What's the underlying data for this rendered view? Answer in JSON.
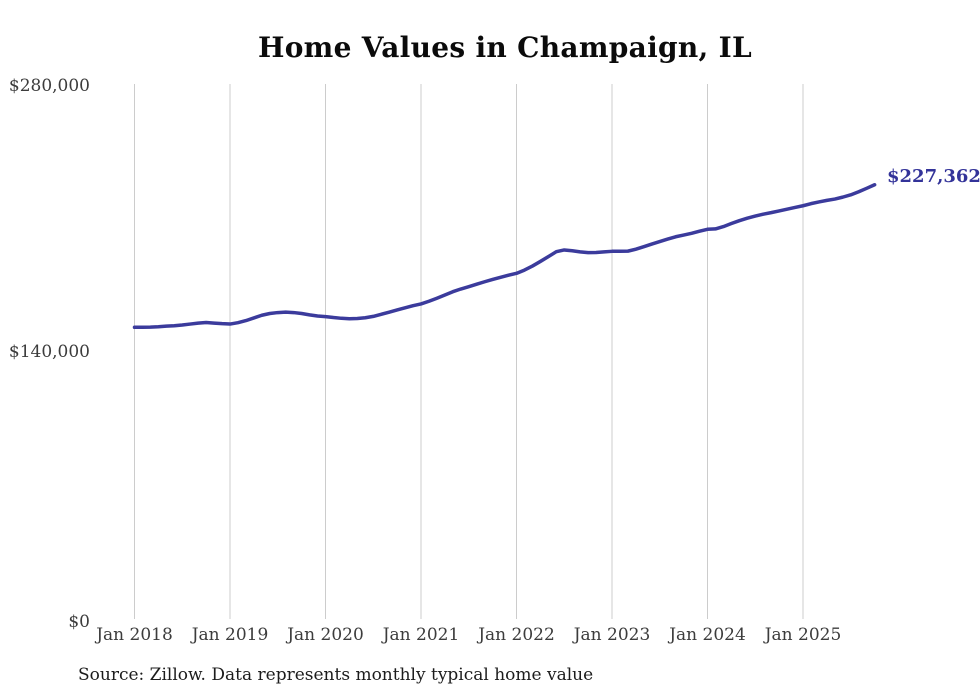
{
  "title": "Home Values in Champaign, IL",
  "source_note": "Source: Zillow. Data represents monthly typical home value",
  "colors": {
    "line": "#3b3b9c",
    "end_label": "#333399",
    "gridline": "#cccccc",
    "tick_text": "#3c3c3c",
    "title_text": "#0b0b0b",
    "background": "#ffffff"
  },
  "chart_data": {
    "type": "line",
    "title": "Home Values in Champaign, IL",
    "series_name": "Monthly typical home value",
    "end_label": "$227,362",
    "end_value": 227362,
    "ylim": [
      0,
      280000
    ],
    "grid": "vertical-only",
    "legend": "none",
    "y_ticks": [
      {
        "label": "$280,000",
        "value": 280000
      },
      {
        "label": "$140,000",
        "value": 140000
      },
      {
        "label": "$0",
        "value": 0
      }
    ],
    "x_ticks": [
      "Jan 2018",
      "Jan 2019",
      "Jan 2020",
      "Jan 2021",
      "Jan 2022",
      "Jan 2023",
      "Jan 2024",
      "Jan 2025"
    ],
    "months": [
      "2018-01",
      "2018-02",
      "2018-03",
      "2018-04",
      "2018-05",
      "2018-06",
      "2018-07",
      "2018-08",
      "2018-09",
      "2018-10",
      "2018-11",
      "2018-12",
      "2019-01",
      "2019-02",
      "2019-03",
      "2019-04",
      "2019-05",
      "2019-06",
      "2019-07",
      "2019-08",
      "2019-09",
      "2019-10",
      "2019-11",
      "2019-12",
      "2020-01",
      "2020-02",
      "2020-03",
      "2020-04",
      "2020-05",
      "2020-06",
      "2020-07",
      "2020-08",
      "2020-09",
      "2020-10",
      "2020-11",
      "2020-12",
      "2021-01",
      "2021-02",
      "2021-03",
      "2021-04",
      "2021-05",
      "2021-06",
      "2021-07",
      "2021-08",
      "2021-09",
      "2021-10",
      "2021-11",
      "2021-12",
      "2022-01",
      "2022-02",
      "2022-03",
      "2022-04",
      "2022-05",
      "2022-06",
      "2022-07",
      "2022-08",
      "2022-09",
      "2022-10",
      "2022-11",
      "2022-12",
      "2023-01",
      "2023-02",
      "2023-03",
      "2023-04",
      "2023-05",
      "2023-06",
      "2023-07",
      "2023-08",
      "2023-09",
      "2023-10",
      "2023-11",
      "2023-12",
      "2024-01",
      "2024-02",
      "2024-03",
      "2024-04",
      "2024-05",
      "2024-06",
      "2024-07",
      "2024-08",
      "2024-09",
      "2024-10",
      "2024-11",
      "2024-12",
      "2025-01",
      "2025-02",
      "2025-03",
      "2025-04",
      "2025-05",
      "2025-06",
      "2025-07",
      "2025-08",
      "2025-09",
      "2025-10"
    ],
    "values": [
      152900,
      152950,
      153000,
      153200,
      153500,
      153700,
      154100,
      154600,
      155100,
      155400,
      155100,
      154800,
      154600,
      155300,
      156400,
      157800,
      159200,
      160100,
      160600,
      160800,
      160600,
      160100,
      159400,
      158800,
      158500,
      158000,
      157600,
      157400,
      157500,
      157900,
      158600,
      159700,
      160800,
      162000,
      163100,
      164200,
      165100,
      166500,
      168100,
      169800,
      171500,
      172900,
      174100,
      175400,
      176700,
      177900,
      179000,
      180100,
      181100,
      182800,
      184900,
      187300,
      189800,
      192400,
      193300,
      192900,
      192300,
      191900,
      192000,
      192300,
      192600,
      192600,
      192700,
      193700,
      195000,
      196400,
      197700,
      199000,
      200200,
      201100,
      202000,
      203100,
      204100,
      204300,
      205500,
      207100,
      208600,
      209900,
      211000,
      212000,
      212800,
      213700,
      214600,
      215500,
      216400,
      217500,
      218400,
      219200,
      219900,
      220900,
      222100,
      223700,
      225500,
      227362
    ]
  }
}
